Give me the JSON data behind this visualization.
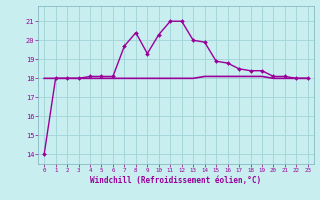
{
  "title": "",
  "xlabel": "Windchill (Refroidissement éolien,°C)",
  "ylabel": "",
  "bg_color": "#c8eef0",
  "grid_color": "#a0d4d8",
  "line_color": "#990099",
  "xlim": [
    -0.5,
    23.5
  ],
  "ylim": [
    13.5,
    21.8
  ],
  "xticks": [
    0,
    1,
    2,
    3,
    4,
    5,
    6,
    7,
    8,
    9,
    10,
    11,
    12,
    13,
    14,
    15,
    16,
    17,
    18,
    19,
    20,
    21,
    22,
    23
  ],
  "yticks": [
    14,
    15,
    16,
    17,
    18,
    19,
    20,
    21
  ],
  "temp_x": [
    0,
    1,
    2,
    3,
    4,
    5,
    6,
    7,
    8,
    9,
    10,
    11,
    12,
    13,
    14,
    15,
    16,
    17,
    18,
    19,
    20,
    21,
    22,
    23
  ],
  "temp_y": [
    18.0,
    18.0,
    18.0,
    18.0,
    18.0,
    18.0,
    18.0,
    18.0,
    18.0,
    18.0,
    18.0,
    18.0,
    18.0,
    18.0,
    18.1,
    18.1,
    18.1,
    18.1,
    18.1,
    18.1,
    18.0,
    18.0,
    18.0,
    18.0
  ],
  "windchill_x": [
    0,
    1,
    2,
    3,
    4,
    5,
    6,
    7,
    8,
    9,
    10,
    11,
    12,
    13,
    14,
    15,
    16,
    17,
    18,
    19,
    20,
    21,
    22,
    23
  ],
  "windchill_y": [
    14.0,
    18.0,
    18.0,
    18.0,
    18.1,
    18.1,
    18.1,
    19.7,
    20.4,
    19.3,
    20.3,
    21.0,
    21.0,
    20.0,
    19.9,
    18.9,
    18.8,
    18.5,
    18.4,
    18.4,
    18.1,
    18.1,
    18.0,
    18.0
  ]
}
